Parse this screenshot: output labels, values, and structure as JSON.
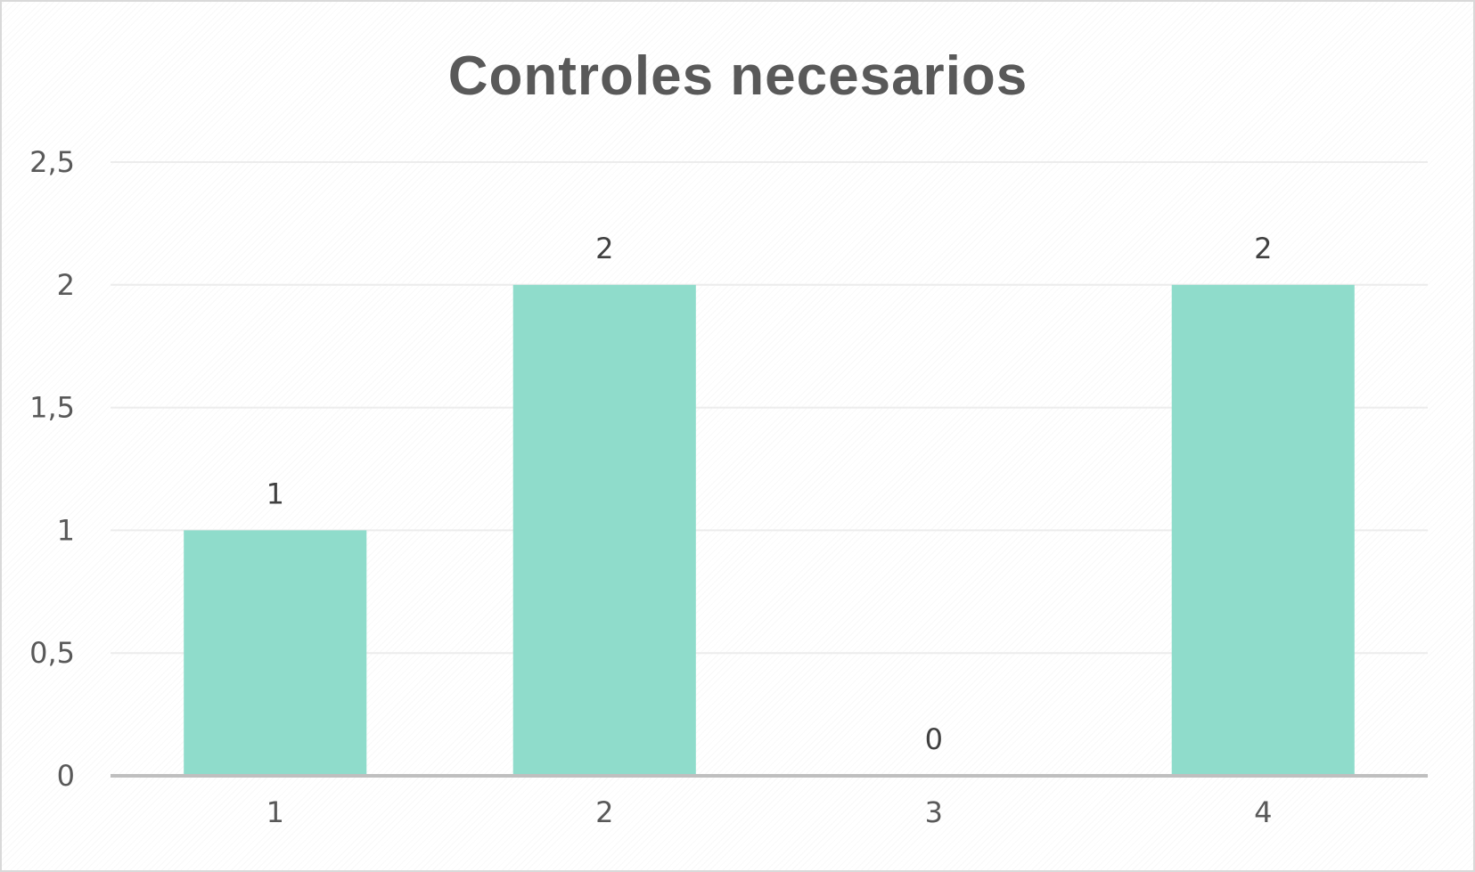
{
  "chart_data": {
    "type": "bar",
    "title": "Controles necesarios",
    "xlabel": "",
    "ylabel": "",
    "categories": [
      "1",
      "2",
      "3",
      "4"
    ],
    "values": [
      1,
      2,
      0,
      2
    ],
    "data_labels": [
      "1",
      "2",
      "0",
      "2"
    ],
    "ylim": [
      0,
      2.5
    ],
    "y_ticks": [
      0,
      0.5,
      1,
      1.5,
      2,
      2.5
    ],
    "y_tick_labels": [
      "0",
      "0,5",
      "1",
      "1,5",
      "2",
      "2,5"
    ],
    "grid": true,
    "legend": "none",
    "bar_color": "#8fdccb",
    "axis_color": "#bfbfbf",
    "text_color": "#595959"
  }
}
